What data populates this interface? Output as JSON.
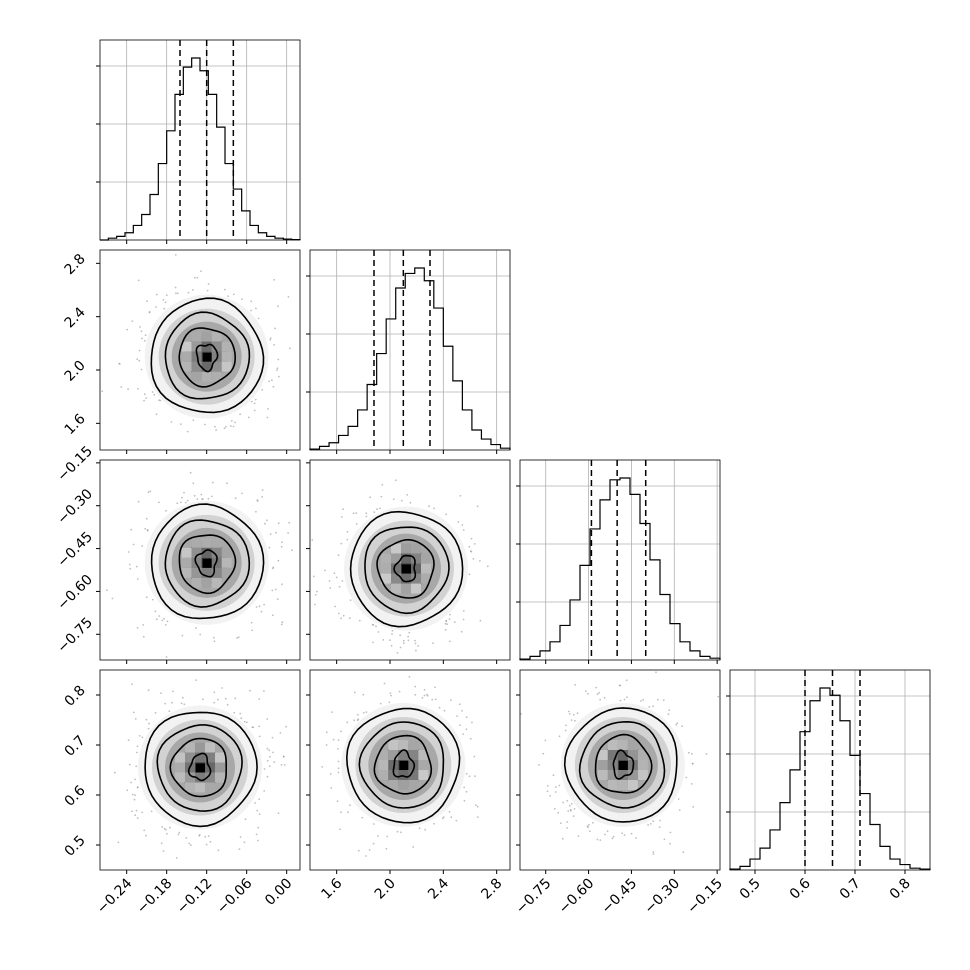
{
  "chart_data": {
    "type": "corner",
    "grid": true,
    "parameters": [
      {
        "range": [
          -0.28,
          0.02
        ],
        "ticks": [
          -0.24,
          -0.18,
          -0.12,
          -0.06,
          0.0
        ],
        "tick_labels": [
          "−0.24",
          "−0.18",
          "−0.12",
          "−0.06",
          "0.00"
        ],
        "quantiles": [
          -0.16,
          -0.12,
          -0.08
        ],
        "hist_bins": [
          0,
          0.01,
          0.02,
          0.04,
          0.08,
          0.14,
          0.25,
          0.42,
          0.6,
          0.8,
          0.95,
          1.0,
          0.93,
          0.8,
          0.62,
          0.42,
          0.28,
          0.16,
          0.08,
          0.04,
          0.02,
          0.01,
          0.005,
          0.002
        ]
      },
      {
        "range": [
          1.4,
          2.9
        ],
        "ticks": [
          1.6,
          2.0,
          2.4,
          2.8
        ],
        "tick_labels": [
          "1.6",
          "2.0",
          "2.4",
          "2.8"
        ],
        "quantiles": [
          1.88,
          2.1,
          2.3
        ],
        "hist_bins": [
          0.005,
          0.02,
          0.04,
          0.08,
          0.13,
          0.22,
          0.36,
          0.53,
          0.72,
          0.89,
          0.97,
          1.0,
          0.93,
          0.78,
          0.57,
          0.38,
          0.22,
          0.11,
          0.06,
          0.03,
          0.01
        ]
      },
      {
        "range": [
          -0.84,
          -0.14
        ],
        "ticks": [
          -0.75,
          -0.6,
          -0.45,
          -0.3,
          -0.15
        ],
        "tick_labels": [
          "−0.75",
          "−0.60",
          "−0.45",
          "−0.30",
          "−0.15"
        ],
        "quantiles": [
          -0.59,
          -0.5,
          -0.4
        ],
        "hist_bins": [
          0.005,
          0.02,
          0.05,
          0.1,
          0.19,
          0.33,
          0.52,
          0.72,
          0.88,
          0.99,
          1.0,
          0.91,
          0.75,
          0.55,
          0.36,
          0.2,
          0.1,
          0.05,
          0.02,
          0.01
        ]
      },
      {
        "range": [
          0.45,
          0.85
        ],
        "ticks": [
          0.5,
          0.6,
          0.7,
          0.8
        ],
        "tick_labels": [
          "0.5",
          "0.6",
          "0.7",
          "0.8"
        ],
        "quantiles": [
          0.6,
          0.655,
          0.71
        ],
        "hist_bins": [
          0.005,
          0.02,
          0.06,
          0.12,
          0.22,
          0.37,
          0.55,
          0.76,
          0.93,
          1.0,
          0.96,
          0.82,
          0.63,
          0.42,
          0.25,
          0.13,
          0.06,
          0.03,
          0.01,
          0.005
        ]
      }
    ],
    "pair_panels": [
      {
        "x": 0,
        "y": 1,
        "peak": [
          -0.12,
          2.1
        ]
      },
      {
        "x": 0,
        "y": 2,
        "peak": [
          -0.12,
          -0.5
        ]
      },
      {
        "x": 1,
        "y": 2,
        "peak": [
          2.12,
          -0.52
        ]
      },
      {
        "x": 0,
        "y": 3,
        "peak": [
          -0.13,
          0.655
        ]
      },
      {
        "x": 1,
        "y": 3,
        "peak": [
          2.1,
          0.66
        ]
      },
      {
        "x": 2,
        "y": 3,
        "peak": [
          -0.48,
          0.66
        ]
      }
    ]
  }
}
